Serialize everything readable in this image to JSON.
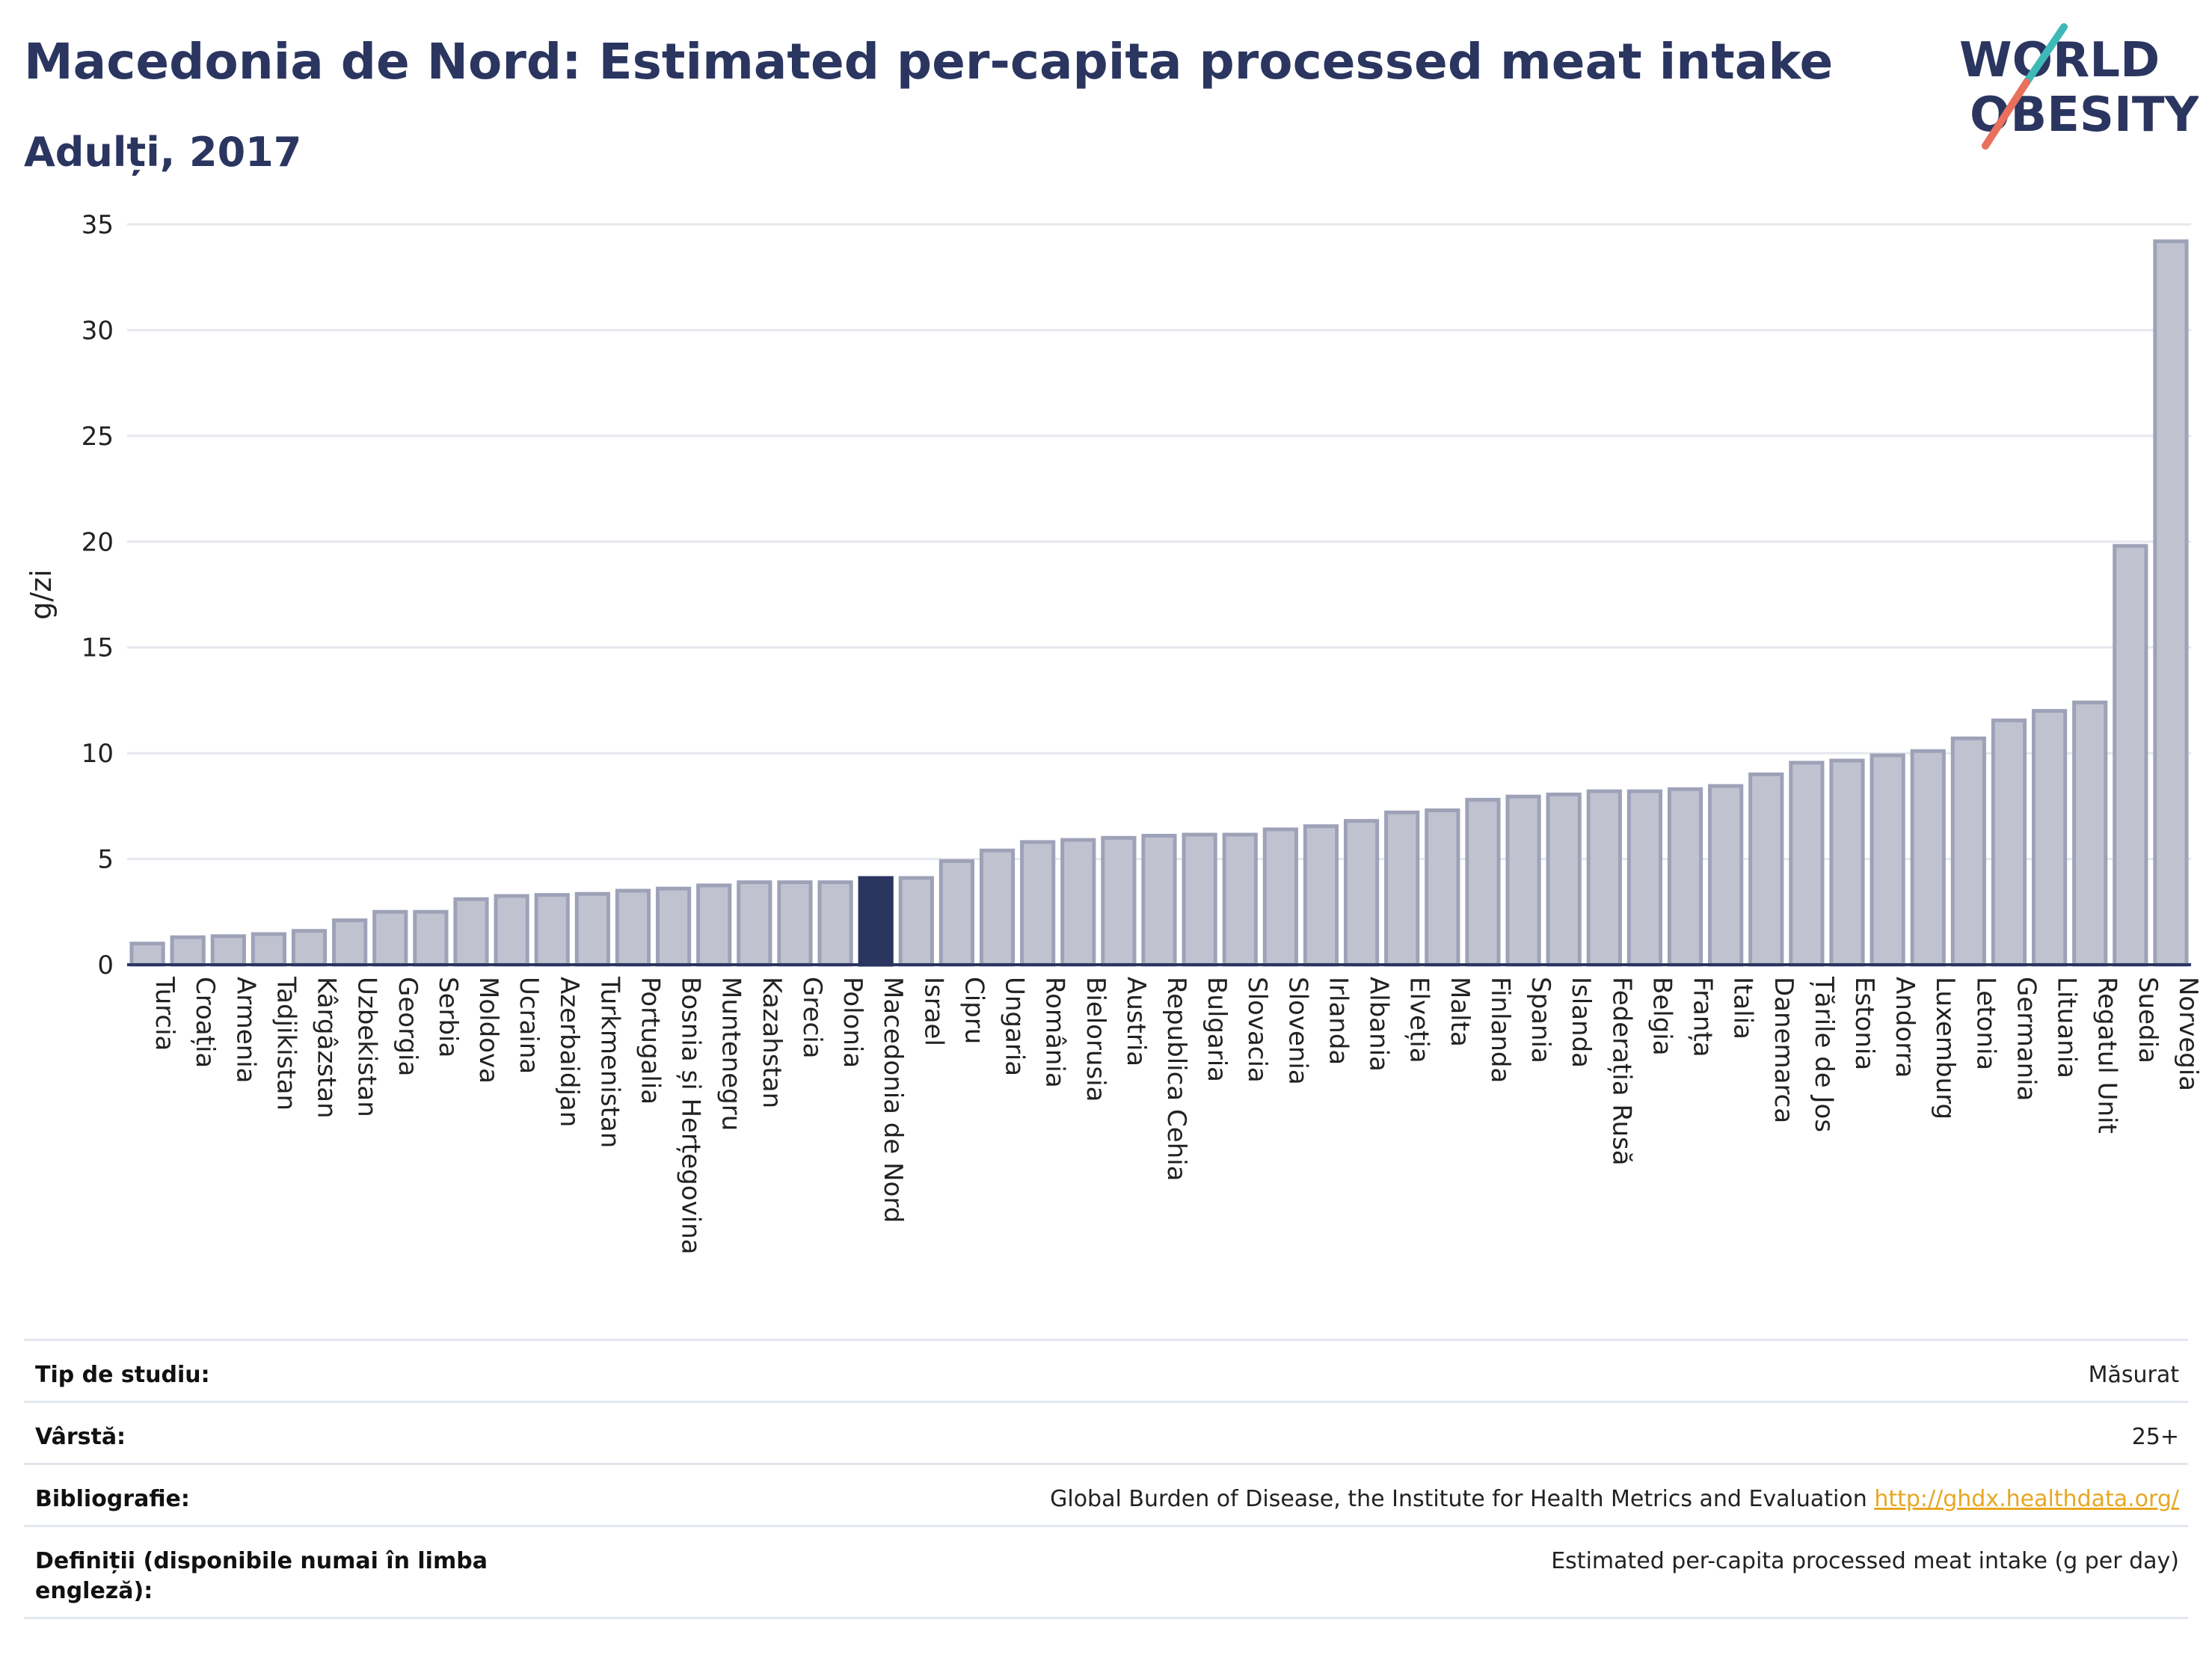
{
  "header": {
    "title": "Macedonia de Nord: Estimated per-capita processed meat intake",
    "subtitle": "Adulți, 2017"
  },
  "logo": {
    "line1": "WORLD",
    "line2": "OBESITY",
    "colors": {
      "text": "#2a3560",
      "slash_top": "#3fb8b8",
      "slash_bottom": "#e8705d"
    }
  },
  "colors": {
    "bar": "#c0c3cf",
    "bar_stroke": "#9ea2b8",
    "highlight": "#2a3560",
    "grid": "#e6e8ee",
    "axis": "#2a3560"
  },
  "chart_data": {
    "type": "bar",
    "ylabel": "g/zi",
    "ylim": [
      0,
      35
    ],
    "yticks": [
      0,
      5,
      10,
      15,
      20,
      25,
      30,
      35
    ],
    "grid": true,
    "highlight": "Macedonia de Nord",
    "categories": [
      "Turcia",
      "Croația",
      "Armenia",
      "Tadjikistan",
      "Kârgâzstan",
      "Uzbekistan",
      "Georgia",
      "Serbia",
      "Moldova",
      "Ucraina",
      "Azerbaidjan",
      "Turkmenistan",
      "Portugalia",
      "Bosnia și Herțegovina",
      "Muntenegru",
      "Kazahstan",
      "Grecia",
      "Polonia",
      "Macedonia de Nord",
      "Israel",
      "Cipru",
      "Ungaria",
      "România",
      "Bielorusia",
      "Austria",
      "Republica Cehia",
      "Bulgaria",
      "Slovacia",
      "Slovenia",
      "Irlanda",
      "Albania",
      "Elveția",
      "Malta",
      "Finlanda",
      "Spania",
      "Islanda",
      "Federația Rusă",
      "Belgia",
      "Franța",
      "Italia",
      "Danemarca",
      "Țările de Jos",
      "Estonia",
      "Andorra",
      "Luxemburg",
      "Letonia",
      "Germania",
      "Lituania",
      "Regatul Unit",
      "Suedia",
      "Norvegia"
    ],
    "values": [
      1.0,
      1.3,
      1.35,
      1.45,
      1.6,
      2.1,
      2.5,
      2.5,
      3.1,
      3.25,
      3.3,
      3.35,
      3.5,
      3.6,
      3.75,
      3.9,
      3.9,
      3.9,
      4.1,
      4.1,
      4.9,
      5.4,
      5.8,
      5.9,
      6.0,
      6.1,
      6.15,
      6.15,
      6.4,
      6.55,
      6.8,
      7.2,
      7.3,
      7.8,
      7.95,
      8.05,
      8.2,
      8.2,
      8.3,
      8.45,
      9.0,
      9.55,
      9.65,
      9.9,
      10.1,
      10.7,
      11.55,
      12.0,
      12.4,
      19.8,
      34.2
    ]
  },
  "meta": {
    "rows": [
      {
        "label": "Tip de studiu:",
        "value": "Măsurat"
      },
      {
        "label": "Vârstă:",
        "value": "25+"
      },
      {
        "label": "Bibliografie:",
        "value": "Global Burden of Disease, the Institute for Health Metrics and Evaluation",
        "link": "http://ghdx.healthdata.org/"
      },
      {
        "label": "Definiții (disponibile numai în limba engleză):",
        "value": "Estimated per-capita processed meat intake (g per day)"
      }
    ]
  }
}
